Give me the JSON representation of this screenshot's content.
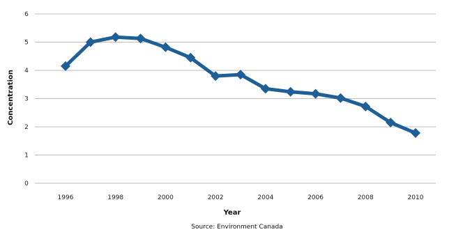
{
  "chart_data": {
    "type": "line",
    "xlabel": "Year",
    "ylabel": "Concentration",
    "source": "Source: Environment Canada",
    "x": [
      1996,
      1997,
      1998,
      1999,
      2000,
      2001,
      2002,
      2003,
      2004,
      2005,
      2006,
      2007,
      2008,
      2009,
      2010
    ],
    "series": [
      {
        "values": [
          4.15,
          5.0,
          5.18,
          5.13,
          4.82,
          4.45,
          3.8,
          3.85,
          3.35,
          3.24,
          3.17,
          3.02,
          2.72,
          2.15,
          1.78
        ]
      }
    ],
    "xticks": [
      "1996",
      "1998",
      "2000",
      "2002",
      "2004",
      "2006",
      "2008",
      "2010"
    ],
    "yticks": [
      "0",
      "1",
      "2",
      "3",
      "4",
      "5",
      "6"
    ],
    "ylim": [
      0,
      6
    ],
    "grid": true,
    "colors": {
      "line": "#1f5f97",
      "grid": "#bdbdbd"
    }
  }
}
